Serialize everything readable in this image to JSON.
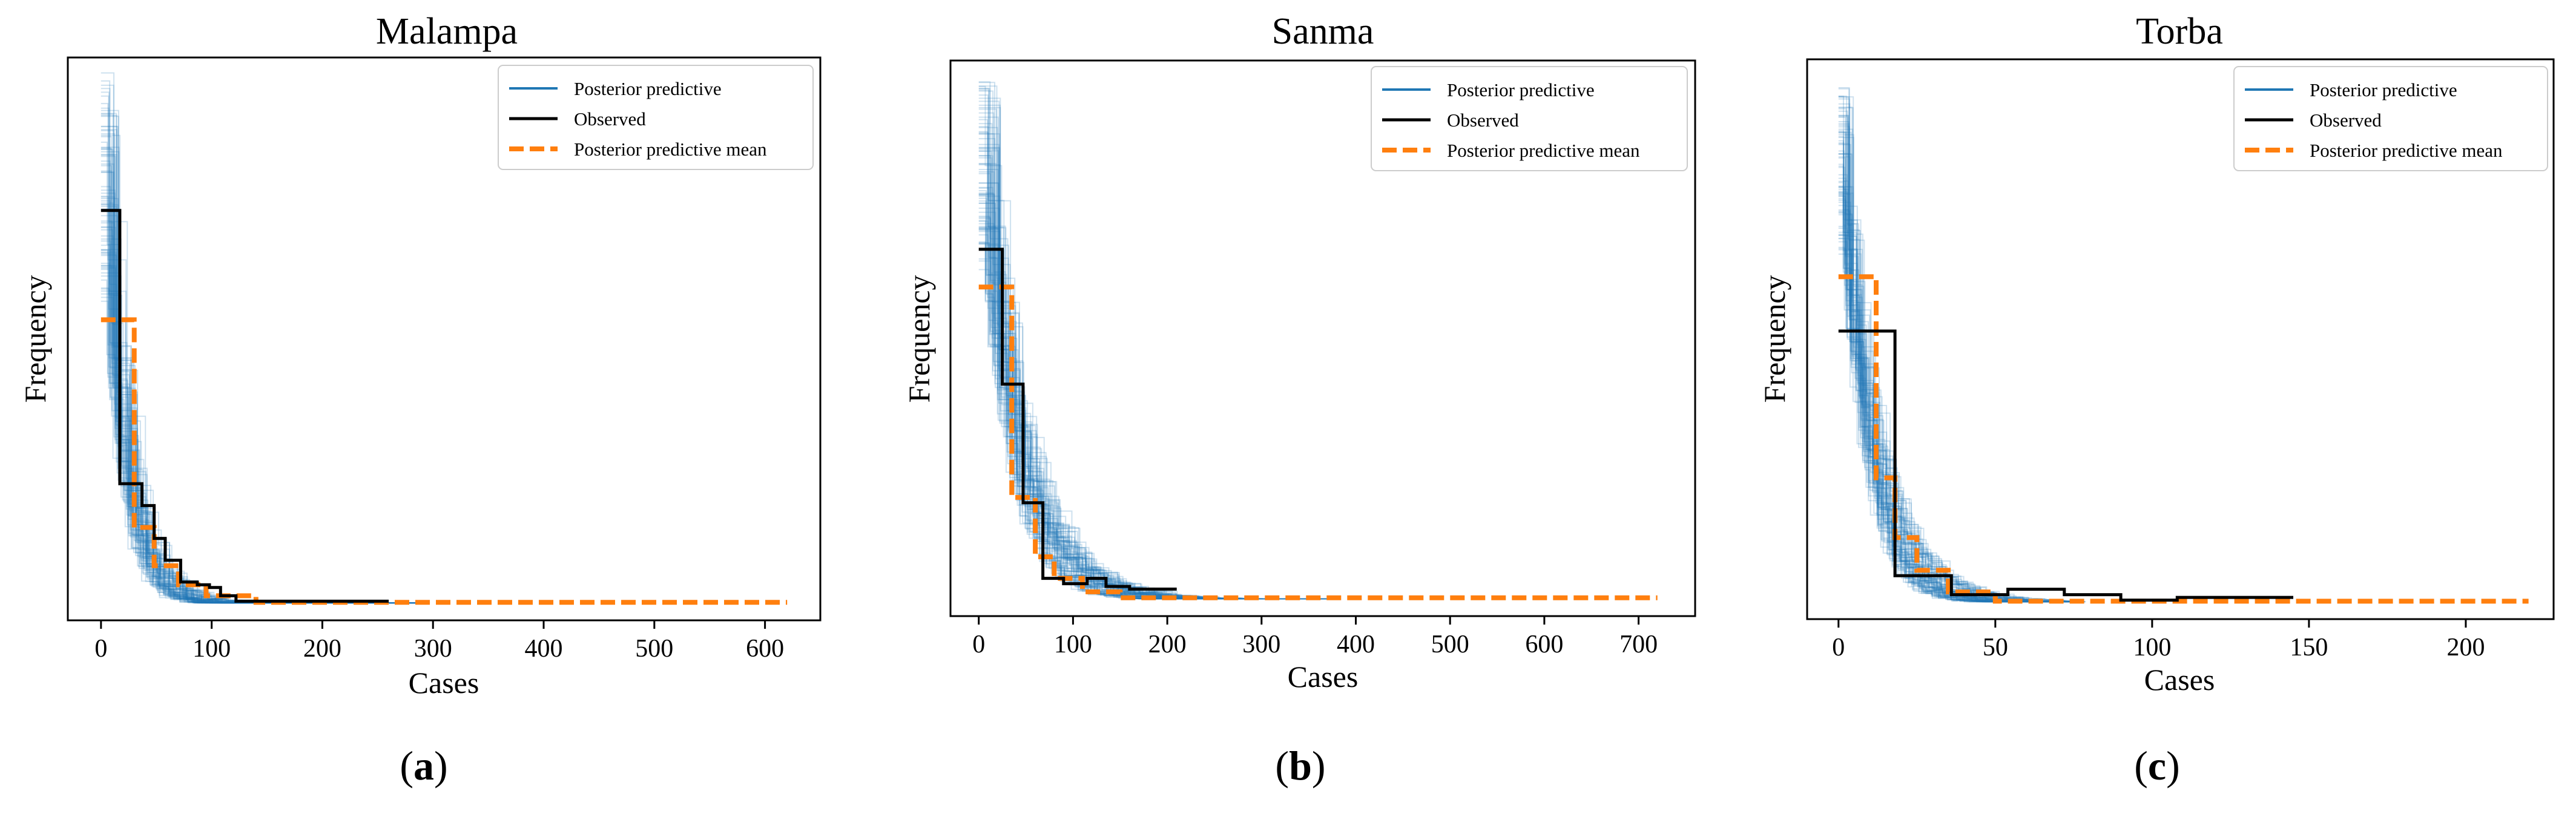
{
  "chart_data": [
    {
      "type": "line",
      "panel_label": "a",
      "title": "Malampa",
      "xlabel": "Cases",
      "ylabel": "Frequency",
      "xlim": [
        -30,
        650
      ],
      "ylim": [
        -0.03,
        1.0
      ],
      "xticks": [
        0,
        100,
        200,
        300,
        400,
        500,
        600
      ],
      "legend": {
        "position": "top-right",
        "entries": [
          "Posterior predictive",
          "Observed",
          "Posterior predictive mean"
        ]
      },
      "observed": {
        "x": [
          0,
          17,
          17,
          37,
          37,
          48,
          48,
          58,
          58,
          72,
          72,
          87,
          87,
          98,
          98,
          108,
          108,
          122,
          122,
          260
        ],
        "y": [
          0.72,
          0.72,
          0.22,
          0.22,
          0.18,
          0.18,
          0.12,
          0.12,
          0.08,
          0.08,
          0.04,
          0.04,
          0.035,
          0.035,
          0.03,
          0.03,
          0.015,
          0.015,
          0.005,
          0.005
        ]
      },
      "predictive_mean": {
        "x": [
          0,
          30,
          30,
          48,
          48,
          70,
          70,
          95,
          95,
          140,
          140,
          620
        ],
        "y": [
          0.52,
          0.52,
          0.14,
          0.14,
          0.07,
          0.07,
          0.035,
          0.035,
          0.015,
          0.015,
          0.003,
          0.003
        ]
      },
      "predictive_samples": {
        "count": 80,
        "start_range": [
          0.55,
          0.97
        ],
        "decay_scale": [
          14,
          24
        ],
        "x_max": 280
      }
    },
    {
      "type": "line",
      "panel_label": "b",
      "title": "Sanma",
      "xlabel": "Cases",
      "ylabel": "Frequency",
      "xlim": [
        -30,
        760
      ],
      "ylim": [
        -0.03,
        1.0
      ],
      "xticks": [
        0,
        100,
        200,
        300,
        400,
        500,
        600,
        700
      ],
      "legend": {
        "position": "top-right",
        "entries": [
          "Posterior predictive",
          "Observed",
          "Posterior predictive mean"
        ]
      },
      "observed": {
        "x": [
          0,
          25,
          25,
          47,
          47,
          68,
          68,
          90,
          90,
          115,
          115,
          135,
          135,
          160,
          160,
          210
        ],
        "y": [
          0.65,
          0.65,
          0.4,
          0.4,
          0.18,
          0.18,
          0.04,
          0.04,
          0.03,
          0.03,
          0.04,
          0.04,
          0.025,
          0.025,
          0.02,
          0.02
        ]
      },
      "predictive_mean": {
        "x": [
          0,
          35,
          35,
          60,
          60,
          80,
          80,
          110,
          110,
          150,
          150,
          720
        ],
        "y": [
          0.58,
          0.58,
          0.19,
          0.19,
          0.08,
          0.08,
          0.04,
          0.04,
          0.015,
          0.015,
          0.004,
          0.004
        ]
      },
      "predictive_samples": {
        "count": 80,
        "start_range": [
          0.6,
          0.96
        ],
        "decay_scale": [
          28,
          46
        ],
        "x_max": 360
      }
    },
    {
      "type": "line",
      "panel_label": "c",
      "title": "Torba",
      "xlabel": "Cases",
      "ylabel": "Frequency",
      "xlim": [
        -10,
        228
      ],
      "ylim": [
        -0.03,
        1.0
      ],
      "xticks": [
        0,
        50,
        100,
        150,
        200
      ],
      "legend": {
        "position": "top-right",
        "entries": [
          "Posterior predictive",
          "Observed",
          "Posterior predictive mean"
        ]
      },
      "observed": {
        "x": [
          0,
          18,
          18,
          36,
          36,
          54,
          54,
          72,
          72,
          90,
          90,
          108,
          108,
          145
        ],
        "y": [
          0.5,
          0.5,
          0.05,
          0.05,
          0.015,
          0.015,
          0.025,
          0.025,
          0.015,
          0.015,
          0.005,
          0.005,
          0.01,
          0.01
        ]
      },
      "predictive_mean": {
        "x": [
          0,
          12,
          12,
          18,
          18,
          25,
          25,
          35,
          35,
          50,
          50,
          220
        ],
        "y": [
          0.6,
          0.6,
          0.23,
          0.23,
          0.12,
          0.12,
          0.06,
          0.06,
          0.02,
          0.02,
          0.003,
          0.003
        ]
      },
      "predictive_samples": {
        "count": 80,
        "start_range": [
          0.65,
          0.96
        ],
        "decay_scale": [
          7,
          13
        ],
        "x_max": 75
      }
    }
  ],
  "colors": {
    "predictive": "#1f77b4",
    "observed": "#000000",
    "mean": "#ff7f0e"
  }
}
